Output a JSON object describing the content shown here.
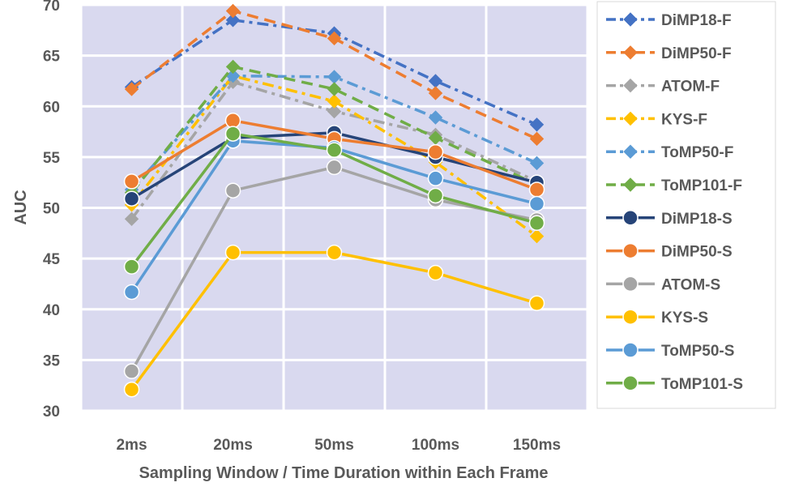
{
  "chart_data": {
    "type": "line",
    "title": "",
    "xlabel": "Sampling Window / Time Duration within Each Frame",
    "ylabel": "AUC",
    "categories": [
      "2ms",
      "20ms",
      "50ms",
      "100ms",
      "150ms"
    ],
    "ylim": [
      30,
      70
    ],
    "yticks": [
      "30",
      "35",
      "40",
      "45",
      "50",
      "55",
      "60",
      "65",
      "70"
    ],
    "grid": true,
    "legend_position": "right",
    "series": [
      {
        "name": "DiMP18-F",
        "color": "#4472C4",
        "dash": "dashdot",
        "marker": "diamond",
        "values": [
          61.9,
          68.5,
          67.2,
          62.5,
          58.2
        ]
      },
      {
        "name": "DiMP50-F",
        "color": "#ED7D31",
        "dash": "dash",
        "marker": "diamond",
        "values": [
          61.7,
          69.4,
          66.7,
          61.3,
          56.8
        ]
      },
      {
        "name": "ATOM-F",
        "color": "#A5A5A5",
        "dash": "dashdot",
        "marker": "diamond",
        "values": [
          48.9,
          62.4,
          59.5,
          57.2,
          52.6
        ]
      },
      {
        "name": "KYS-F",
        "color": "#FFC000",
        "dash": "dashdot",
        "marker": "diamond",
        "values": [
          50.3,
          63.0,
          60.5,
          54.5,
          47.2
        ]
      },
      {
        "name": "ToMP50-F",
        "color": "#5B9BD5",
        "dash": "dashdot",
        "marker": "diamond",
        "values": [
          51.8,
          63.0,
          62.9,
          58.9,
          54.4
        ]
      },
      {
        "name": "ToMP101-F",
        "color": "#70AD47",
        "dash": "dash",
        "marker": "diamond",
        "values": [
          51.5,
          63.9,
          61.7,
          56.9,
          52.3
        ]
      },
      {
        "name": "DiMP18-S",
        "color": "#264478",
        "dash": "solid",
        "marker": "circle",
        "values": [
          50.9,
          56.9,
          57.4,
          55.0,
          52.5
        ]
      },
      {
        "name": "DiMP50-S",
        "color": "#ED7D31",
        "dash": "solid",
        "marker": "circle",
        "values": [
          52.6,
          58.6,
          56.8,
          55.5,
          51.8
        ]
      },
      {
        "name": "ATOM-S",
        "color": "#A5A5A5",
        "dash": "solid",
        "marker": "circle",
        "values": [
          33.9,
          51.7,
          54.0,
          50.8,
          48.8
        ]
      },
      {
        "name": "KYS-S",
        "color": "#FFC000",
        "dash": "solid",
        "marker": "circle",
        "values": [
          32.1,
          45.6,
          45.6,
          43.6,
          40.6
        ]
      },
      {
        "name": "ToMP50-S",
        "color": "#5B9BD5",
        "dash": "solid",
        "marker": "circle",
        "values": [
          41.7,
          56.6,
          55.9,
          52.9,
          50.4
        ]
      },
      {
        "name": "ToMP101-S",
        "color": "#70AD47",
        "dash": "solid",
        "marker": "circle",
        "values": [
          44.2,
          57.3,
          55.7,
          51.2,
          48.5
        ]
      }
    ]
  }
}
